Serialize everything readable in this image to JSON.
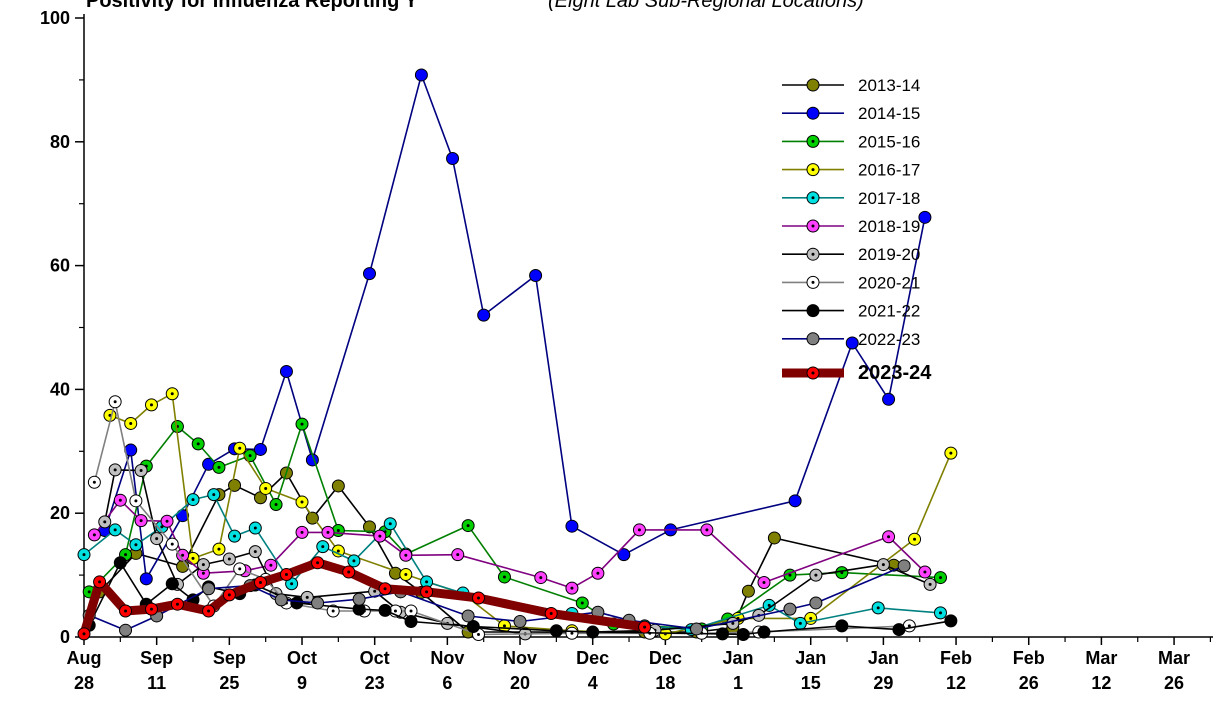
{
  "chart_data": {
    "type": "line",
    "title": "Positivity for Influenza Reporting Y",
    "subtitle": "(Eight Lab Sub-Regional Locations)",
    "xlabel": "",
    "ylabel": "",
    "ylim": [
      0,
      100
    ],
    "yticks": [
      0,
      20,
      40,
      60,
      80,
      100
    ],
    "x_ticks": [
      {
        "day": 0,
        "label": [
          "Aug",
          "28"
        ]
      },
      {
        "day": 14,
        "label": [
          "Sep",
          "11"
        ]
      },
      {
        "day": 28,
        "label": [
          "Sep",
          "25"
        ]
      },
      {
        "day": 42,
        "label": [
          "Oct",
          "9"
        ]
      },
      {
        "day": 56,
        "label": [
          "Oct",
          "23"
        ]
      },
      {
        "day": 70,
        "label": [
          "Nov",
          "6"
        ]
      },
      {
        "day": 84,
        "label": [
          "Nov",
          "20"
        ]
      },
      {
        "day": 98,
        "label": [
          "Dec",
          "4"
        ]
      },
      {
        "day": 112,
        "label": [
          "Dec",
          "18"
        ]
      },
      {
        "day": 126,
        "label": [
          "Jan",
          "1"
        ]
      },
      {
        "day": 140,
        "label": [
          "Jan",
          "15"
        ]
      },
      {
        "day": 154,
        "label": [
          "Jan",
          "29"
        ]
      },
      {
        "day": 168,
        "label": [
          "Feb",
          "12"
        ]
      },
      {
        "day": 182,
        "label": [
          "Feb",
          "26"
        ]
      },
      {
        "day": 196,
        "label": [
          "Mar",
          "12"
        ]
      },
      {
        "day": 210,
        "label": [
          "Mar",
          "26"
        ]
      }
    ],
    "legend_position": "top-right",
    "series": [
      {
        "name": "2013-14",
        "line_color": "#000000",
        "marker_fill": "#808000",
        "marker_style": "solid",
        "points": [
          [
            3,
            7.3
          ],
          [
            10,
            13.5
          ],
          [
            19,
            11.4
          ],
          [
            26,
            23
          ],
          [
            29,
            24.5
          ],
          [
            34,
            22.5
          ],
          [
            39,
            26.5
          ],
          [
            44,
            19.2
          ],
          [
            49,
            24.4
          ],
          [
            55,
            17.8
          ],
          [
            60,
            10.3
          ],
          [
            65,
            7.2
          ],
          [
            74,
            0.8
          ],
          [
            94,
            0.8
          ],
          [
            108,
            0.8
          ],
          [
            118,
            0.8
          ],
          [
            125,
            1.5
          ],
          [
            128,
            7.4
          ],
          [
            133,
            16
          ],
          [
            156,
            11.6
          ]
        ]
      },
      {
        "name": "2014-15",
        "line_color": "#000080",
        "marker_fill": "#0000ff",
        "marker_style": "solid",
        "points": [
          [
            4,
            17.2
          ],
          [
            9,
            30.2
          ],
          [
            12,
            9.4
          ],
          [
            19,
            19.6
          ],
          [
            24,
            27.9
          ],
          [
            29,
            30.4
          ],
          [
            34,
            30.3
          ],
          [
            39,
            42.9
          ],
          [
            44,
            28.6
          ],
          [
            55,
            58.7
          ],
          [
            65,
            90.8
          ],
          [
            71,
            77.3
          ],
          [
            77,
            52
          ],
          [
            87,
            58.4
          ],
          [
            94,
            17.9
          ],
          [
            104,
            13.3
          ],
          [
            113,
            17.3
          ],
          [
            137,
            22
          ],
          [
            148,
            47.5
          ],
          [
            155,
            38.4
          ],
          [
            162,
            67.8
          ]
        ]
      },
      {
        "name": "2015-16",
        "line_color": "#008000",
        "marker_fill": "#00d000",
        "marker_style": "dot",
        "points": [
          [
            1,
            7.3
          ],
          [
            8,
            13.3
          ],
          [
            12,
            27.6
          ],
          [
            18,
            34
          ],
          [
            22,
            31.2
          ],
          [
            26,
            27.4
          ],
          [
            32,
            29.3
          ],
          [
            37,
            21.4
          ],
          [
            42,
            34.4
          ],
          [
            49,
            17.2
          ],
          [
            58,
            17
          ],
          [
            62,
            13.4
          ],
          [
            74,
            18
          ],
          [
            81,
            9.7
          ],
          [
            96,
            5.5
          ],
          [
            102,
            2.1
          ],
          [
            119,
            1.3
          ],
          [
            124,
            2.9
          ],
          [
            136,
            10
          ],
          [
            146,
            10.4
          ],
          [
            165,
            9.6
          ]
        ]
      },
      {
        "name": "2016-17",
        "line_color": "#808000",
        "marker_fill": "#ffff00",
        "marker_style": "dot",
        "points": [
          [
            5,
            35.8
          ],
          [
            9,
            34.5
          ],
          [
            13,
            37.5
          ],
          [
            17,
            39.3
          ],
          [
            21,
            12.7
          ],
          [
            26,
            14.2
          ],
          [
            30,
            30.5
          ],
          [
            35,
            24
          ],
          [
            42,
            21.8
          ],
          [
            49,
            13.9
          ],
          [
            62,
            10.1
          ],
          [
            73,
            7
          ],
          [
            81,
            1.8
          ],
          [
            94,
            1
          ],
          [
            112,
            0.5
          ],
          [
            126,
            3
          ],
          [
            140,
            3
          ],
          [
            160,
            15.8
          ],
          [
            167,
            29.7
          ]
        ]
      },
      {
        "name": "2017-18",
        "line_color": "#008080",
        "marker_fill": "#00e0e0",
        "marker_style": "dot",
        "points": [
          [
            0,
            13.3
          ],
          [
            6,
            17.3
          ],
          [
            10,
            14.9
          ],
          [
            15,
            17.8
          ],
          [
            21,
            22.2
          ],
          [
            25,
            23
          ],
          [
            29,
            16.3
          ],
          [
            33,
            17.6
          ],
          [
            40,
            8.6
          ],
          [
            46,
            14.6
          ],
          [
            52,
            12.3
          ],
          [
            59,
            18.3
          ],
          [
            66,
            8.9
          ],
          [
            73,
            7.1
          ],
          [
            94,
            3.8
          ],
          [
            108,
            1.8
          ],
          [
            117,
            1.2
          ],
          [
            132,
            5.1
          ],
          [
            138,
            2.2
          ],
          [
            153,
            4.7
          ],
          [
            165,
            3.9
          ]
        ]
      },
      {
        "name": "2018-19",
        "line_color": "#800080",
        "marker_fill": "#ff40ff",
        "marker_style": "dot",
        "points": [
          [
            2,
            16.5
          ],
          [
            7,
            22.1
          ],
          [
            11,
            18.8
          ],
          [
            16,
            18.7
          ],
          [
            19,
            13.2
          ],
          [
            23,
            10.3
          ],
          [
            31,
            10.7
          ],
          [
            36,
            11.6
          ],
          [
            42,
            16.9
          ],
          [
            47,
            16.9
          ],
          [
            57,
            16.3
          ],
          [
            62,
            13.2
          ],
          [
            72,
            13.3
          ],
          [
            88,
            9.6
          ],
          [
            94,
            7.9
          ],
          [
            99,
            10.3
          ],
          [
            107,
            17.3
          ],
          [
            120,
            17.3
          ],
          [
            131,
            8.8
          ],
          [
            155,
            16.2
          ],
          [
            162,
            10.5
          ]
        ]
      },
      {
        "name": "2019-20",
        "line_color": "#000000",
        "marker_fill": "#c0c0c0",
        "marker_style": "dot",
        "points": [
          [
            4,
            18.6
          ],
          [
            6,
            27
          ],
          [
            11,
            26.9
          ],
          [
            14,
            15.9
          ],
          [
            18,
            8.5
          ],
          [
            23,
            11.7
          ],
          [
            28,
            12.6
          ],
          [
            33,
            13.8
          ],
          [
            37,
            7
          ],
          [
            43,
            6.4
          ],
          [
            56,
            7.4
          ],
          [
            61,
            4
          ],
          [
            70,
            2.2
          ],
          [
            85,
            0.5
          ],
          [
            110,
            1.1
          ],
          [
            125,
            2.2
          ],
          [
            130,
            3.5
          ],
          [
            141,
            10
          ],
          [
            154,
            11.7
          ],
          [
            163,
            8.5
          ]
        ]
      },
      {
        "name": "2020-21",
        "line_color": "#808080",
        "marker_fill": "#ffffff",
        "marker_style": "dot",
        "points": [
          [
            2,
            25
          ],
          [
            6,
            38
          ],
          [
            10,
            22
          ],
          [
            17,
            15
          ],
          [
            25,
            5
          ],
          [
            30,
            11
          ],
          [
            35,
            9.3
          ],
          [
            39,
            5.5
          ],
          [
            48,
            4.2
          ],
          [
            54,
            4.2
          ],
          [
            60,
            4.2
          ],
          [
            63,
            4.2
          ],
          [
            76,
            0.4
          ],
          [
            94,
            0.6
          ],
          [
            109,
            0.6
          ],
          [
            119,
            0.6
          ],
          [
            130,
            0.8
          ],
          [
            159,
            1.8
          ]
        ]
      },
      {
        "name": "2021-22",
        "line_color": "#000000",
        "marker_fill": "#000000",
        "marker_style": "solid",
        "points": [
          [
            1,
            1.9
          ],
          [
            7,
            12
          ],
          [
            12,
            5.3
          ],
          [
            17,
            8.6
          ],
          [
            21,
            6
          ],
          [
            24,
            8.1
          ],
          [
            30,
            7
          ],
          [
            33,
            8.4
          ],
          [
            41,
            5.5
          ],
          [
            53,
            4.5
          ],
          [
            58,
            4.3
          ],
          [
            63,
            2.5
          ],
          [
            75,
            1.7
          ],
          [
            91,
            1
          ],
          [
            98,
            0.8
          ],
          [
            123,
            0.5
          ],
          [
            127,
            0.4
          ],
          [
            131,
            0.8
          ],
          [
            146,
            1.8
          ],
          [
            157,
            1.2
          ],
          [
            167,
            2.6
          ]
        ]
      },
      {
        "name": "2022-23",
        "line_color": "#000080",
        "marker_fill": "#808080",
        "marker_style": "solid",
        "points": [
          [
            1,
            3.5
          ],
          [
            8,
            1.1
          ],
          [
            14,
            3.4
          ],
          [
            24,
            7.8
          ],
          [
            32,
            8.3
          ],
          [
            38,
            6
          ],
          [
            45,
            5.5
          ],
          [
            53,
            6.1
          ],
          [
            61,
            7.3
          ],
          [
            74,
            3.4
          ],
          [
            84,
            2.5
          ],
          [
            99,
            4
          ],
          [
            105,
            2.7
          ],
          [
            118,
            1.3
          ],
          [
            136,
            4.5
          ],
          [
            141,
            5.5
          ],
          [
            158,
            11.5
          ]
        ]
      },
      {
        "name": "2023-24",
        "line_color": "#800000",
        "marker_fill": "#ff0000",
        "marker_style": "dot",
        "bold": true,
        "points": [
          [
            0,
            0.5
          ],
          [
            3,
            8.9
          ],
          [
            8,
            4.2
          ],
          [
            13,
            4.5
          ],
          [
            18,
            5.3
          ],
          [
            24,
            4.2
          ],
          [
            28,
            6.8
          ],
          [
            34,
            8.8
          ],
          [
            39,
            10.1
          ],
          [
            45,
            12
          ],
          [
            51,
            10.5
          ],
          [
            58,
            7.8
          ],
          [
            66,
            7.3
          ],
          [
            76,
            6.3
          ],
          [
            90,
            3.8
          ],
          [
            108,
            1.6
          ]
        ]
      }
    ]
  }
}
